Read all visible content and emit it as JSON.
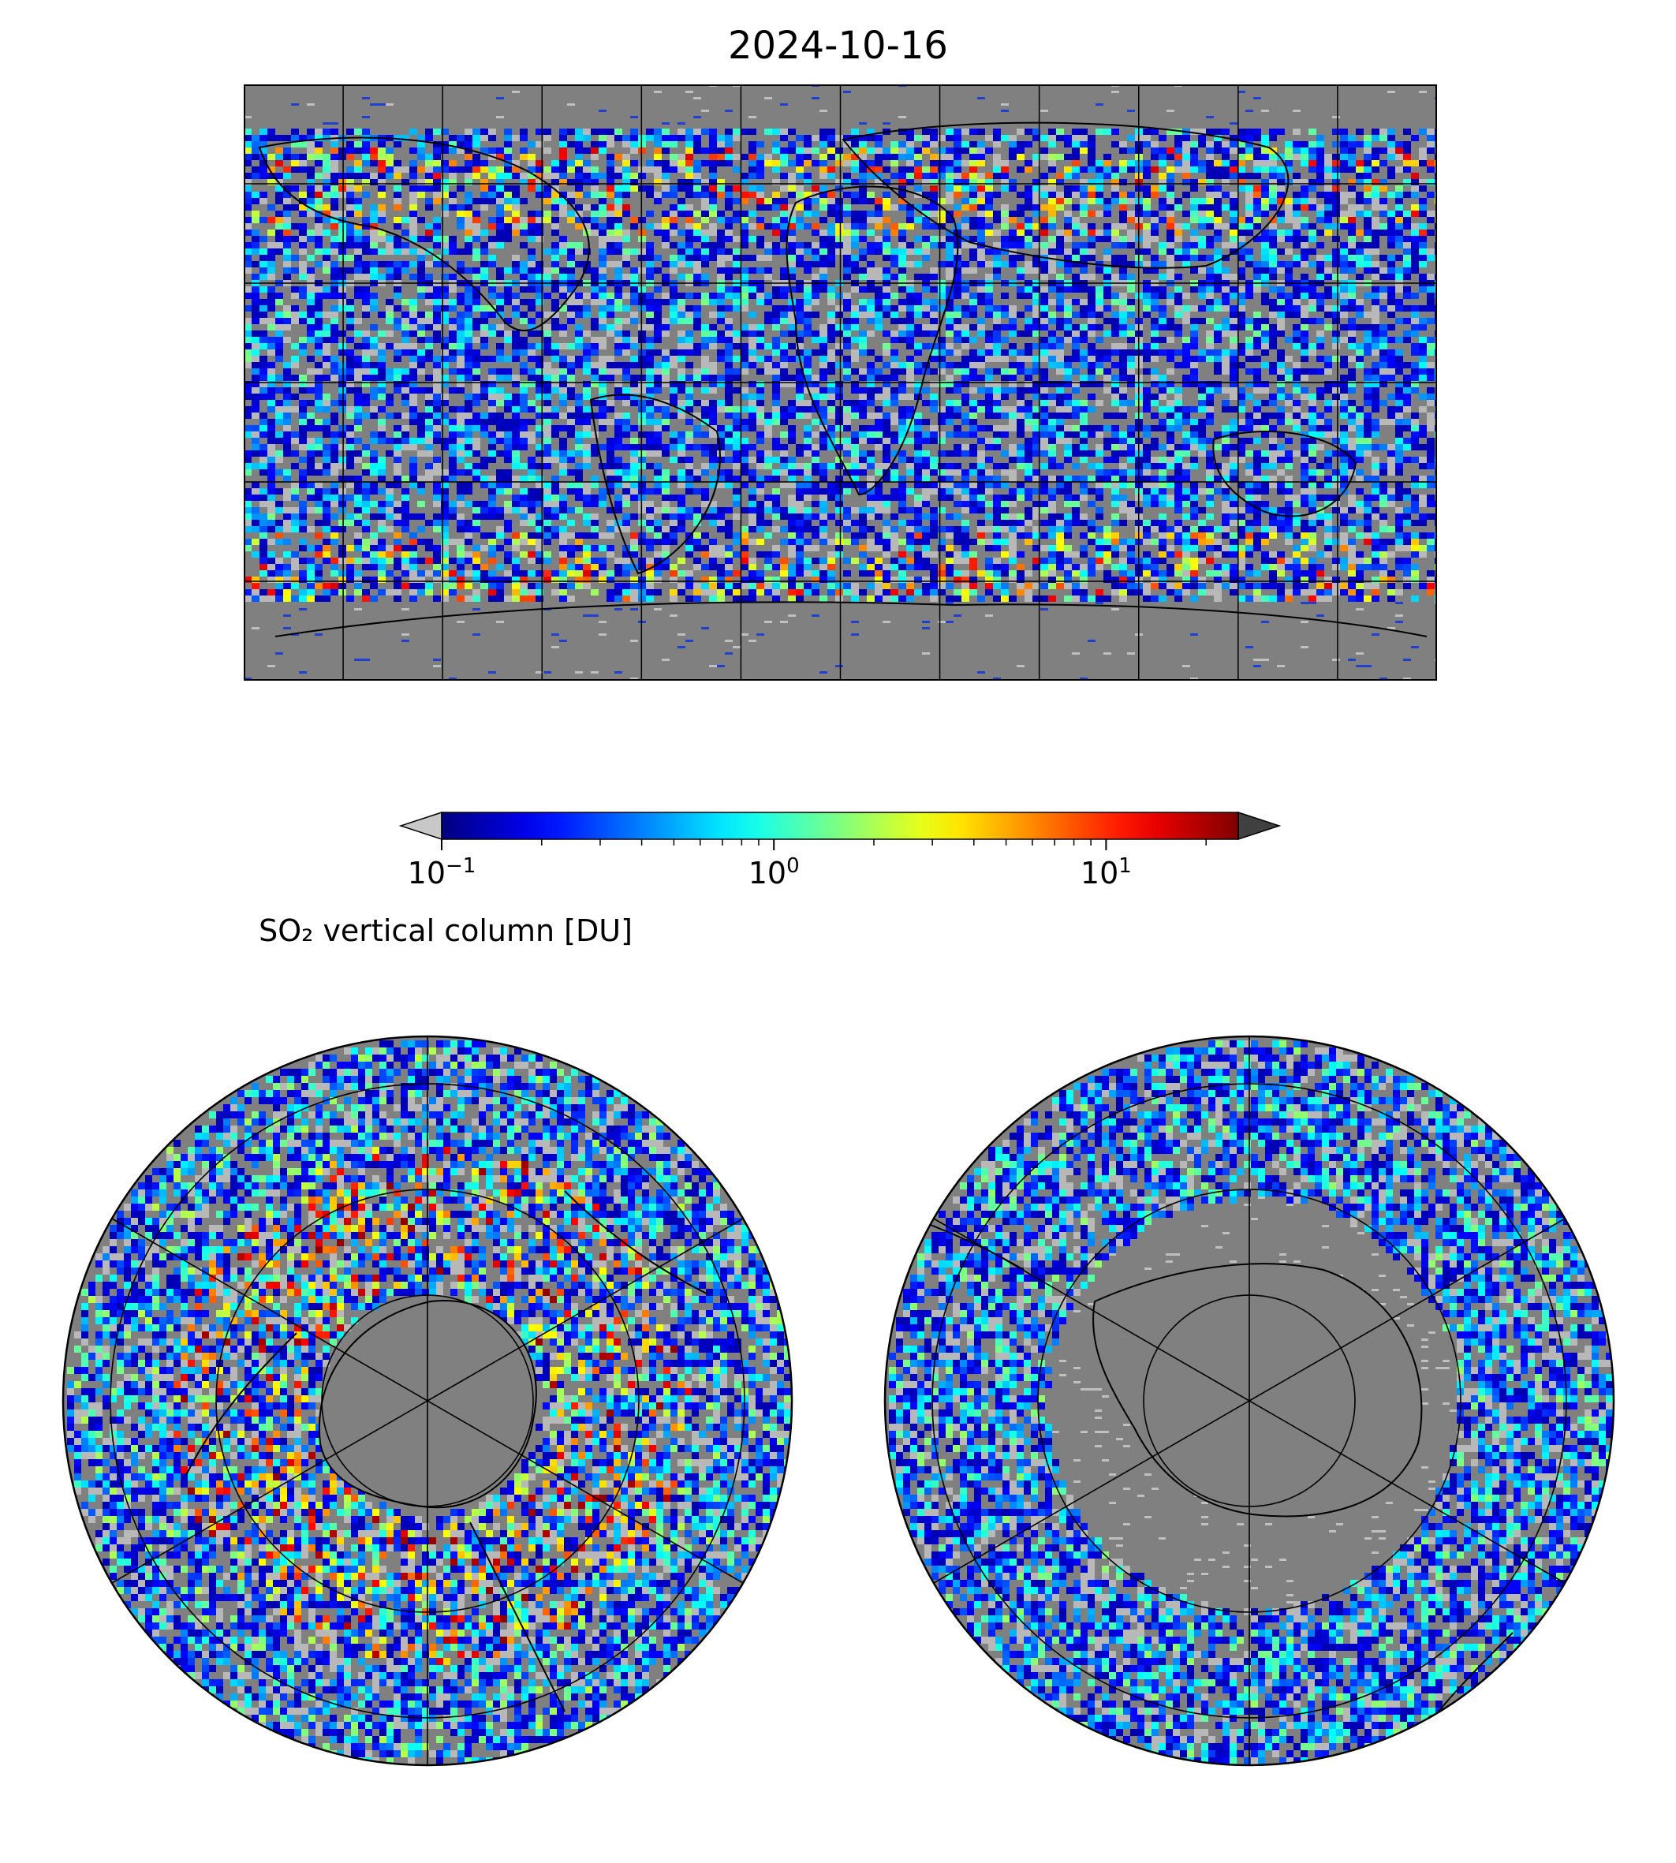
{
  "title": "2024-10-16",
  "colorbar": {
    "label": "SO₂ vertical column [DU]",
    "scale": "log",
    "range": [
      0.1,
      25
    ],
    "extend": "both",
    "under_color": "#c8c8c8",
    "over_color": "#404040",
    "colormap": "jet",
    "ticks": [
      {
        "base": "10",
        "exp": "−1",
        "value": 0.1
      },
      {
        "base": "10",
        "exp": "0",
        "value": 1
      },
      {
        "base": "10",
        "exp": "1",
        "value": 10
      }
    ]
  },
  "colors": {
    "background_gray": "#808080",
    "coastline": "#000000",
    "gridline": "#000000"
  },
  "maps": [
    {
      "name": "global-equirectangular",
      "projection": "plate-carree",
      "gridlines": true
    },
    {
      "name": "north-polar",
      "projection": "north-polar-stereographic",
      "gridlines": true
    },
    {
      "name": "south-polar",
      "projection": "south-polar-stereographic",
      "gridlines": true
    }
  ]
}
